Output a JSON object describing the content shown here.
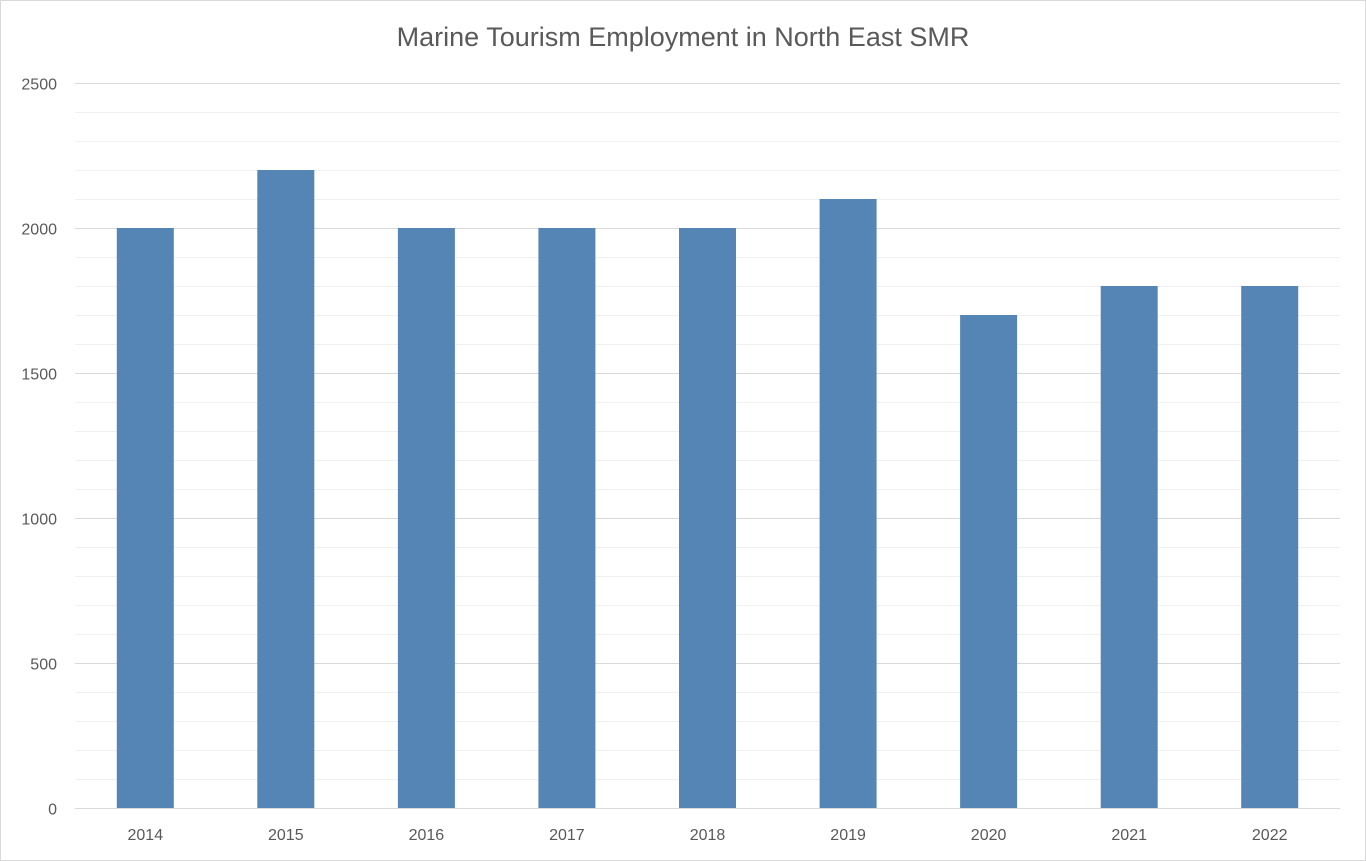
{
  "chart_data": {
    "type": "bar",
    "title": "Marine Tourism Employment in North East SMR",
    "categories": [
      "2014",
      "2015",
      "2016",
      "2017",
      "2018",
      "2019",
      "2020",
      "2021",
      "2022"
    ],
    "values": [
      2000,
      2200,
      2000,
      2000,
      2000,
      2100,
      1700,
      1800,
      1800
    ],
    "ylim": [
      0,
      2500
    ],
    "yticks": [
      "0",
      "500",
      "1000",
      "1500",
      "2000",
      "2500"
    ],
    "ytick_values": [
      0,
      500,
      1000,
      1500,
      2000,
      2500
    ],
    "minor_step": 100,
    "grid": true,
    "legend": "none",
    "bar_color": "#5585b5",
    "major_grid_color": "#d9d9d9",
    "minor_grid_color": "#f0f0f0"
  }
}
